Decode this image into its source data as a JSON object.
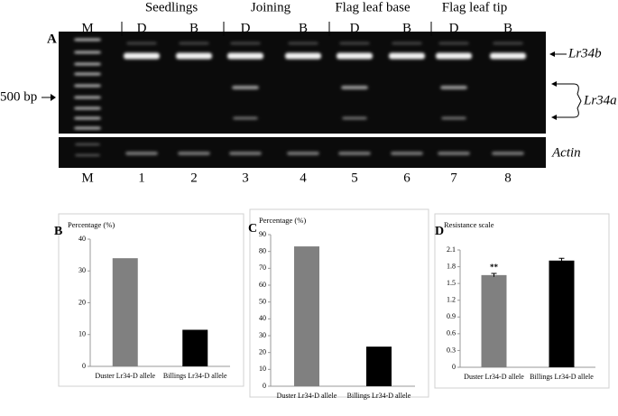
{
  "gel": {
    "panel": "A",
    "groups": [
      "Seedlings",
      "Joining",
      "Flag leaf base",
      "Flag leaf tip"
    ],
    "lane_headers": [
      "M",
      "D",
      "B",
      "D",
      "B",
      "D",
      "B",
      "D",
      "B"
    ],
    "lane_numbers": [
      "M",
      "1",
      "2",
      "3",
      "4",
      "5",
      "6",
      "7",
      "8"
    ],
    "marker_label": "500 bp",
    "band_labels": [
      "Lr34b",
      "Lr34a",
      "Actin"
    ]
  },
  "chart_data": [
    {
      "type": "bar",
      "label": "B",
      "ylabel": "Percentage (%)",
      "categories": [
        "Duster Lr34-D allele",
        "Billings Lr34-D allele"
      ],
      "values": [
        34,
        11.5
      ],
      "colors": [
        "#808080",
        "#000000"
      ],
      "ylim": [
        0,
        40
      ],
      "yticks": [
        0,
        10,
        20,
        30,
        40
      ]
    },
    {
      "type": "bar",
      "label": "C",
      "ylabel": "Percentage (%)",
      "categories": [
        "Duster Lr34-D allele",
        "Billings Lr34-D allele"
      ],
      "values": [
        83,
        23.5
      ],
      "colors": [
        "#808080",
        "#000000"
      ],
      "ylim": [
        0,
        90
      ],
      "yticks": [
        0,
        10,
        20,
        30,
        40,
        50,
        60,
        70,
        80,
        90
      ]
    },
    {
      "type": "bar",
      "label": "D",
      "ylabel": "Resistance scale",
      "categories": [
        "Duster Lr34-D allele",
        "Billings Lr34-D allele"
      ],
      "values": [
        1.65,
        1.91
      ],
      "errors": [
        0.03,
        0.04
      ],
      "colors": [
        "#808080",
        "#000000"
      ],
      "annotation": "**",
      "ylim": [
        0,
        2.1
      ],
      "yticks": [
        0,
        0.3,
        0.6,
        0.9,
        1.2,
        1.5,
        1.8,
        2.1
      ]
    }
  ]
}
